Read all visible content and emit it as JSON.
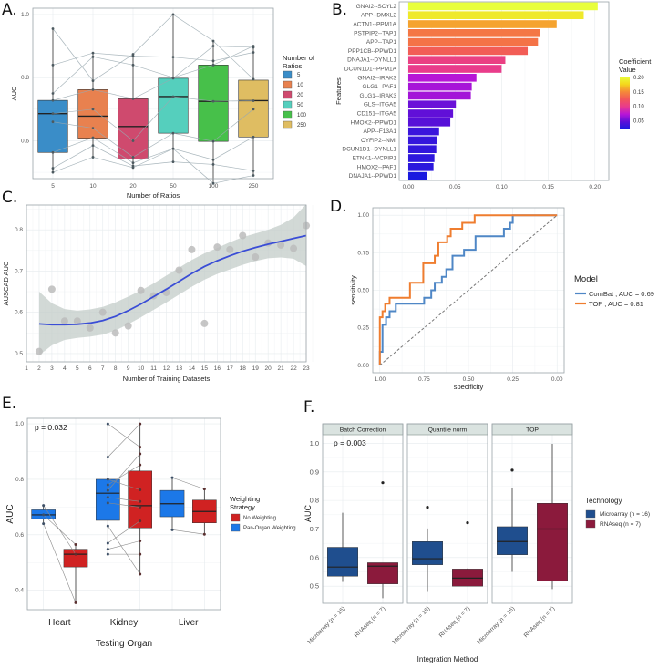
{
  "panels": {
    "A": {
      "letter": "A."
    },
    "B": {
      "letter": "B."
    },
    "C": {
      "letter": "C."
    },
    "D": {
      "letter": "D."
    },
    "E": {
      "letter": "E."
    },
    "F": {
      "letter": "F."
    }
  },
  "chart_data": [
    {
      "id": "A",
      "type": "box",
      "title": "",
      "xlabel": "Number of Ratios",
      "ylabel": "AUC",
      "ylim": [
        0.48,
        1.02
      ],
      "yticks": [
        0.6,
        0.8,
        1.0
      ],
      "categories": [
        "5",
        "10",
        "20",
        "50",
        "100",
        "250"
      ],
      "colors": [
        "#3a8dc8",
        "#e8814f",
        "#cf4a6e",
        "#55cfbd",
        "#47c04a",
        "#dfbd62"
      ],
      "boxes": [
        {
          "q1": 0.563,
          "median": 0.686,
          "q3": 0.728,
          "whisker_low": 0.5,
          "whisker_high": 0.955
        },
        {
          "q1": 0.608,
          "median": 0.678,
          "q3": 0.762,
          "whisker_low": 0.548,
          "whisker_high": 0.878
        },
        {
          "q1": 0.542,
          "median": 0.645,
          "q3": 0.733,
          "whisker_low": 0.52,
          "whisker_high": 0.874
        },
        {
          "q1": 0.624,
          "median": 0.74,
          "q3": 0.798,
          "whisker_low": 0.533,
          "whisker_high": 1.0
        },
        {
          "q1": 0.598,
          "median": 0.725,
          "q3": 0.84,
          "whisker_low": 0.465,
          "whisker_high": 0.916
        },
        {
          "q1": 0.612,
          "median": 0.727,
          "q3": 0.792,
          "whisker_low": 0.49,
          "whisker_high": 0.9
        }
      ],
      "paired_lines": [
        [
          0.955,
          0.79,
          0.874,
          1.0,
          0.916,
          0.795
        ],
        [
          0.84,
          0.878,
          0.868,
          0.865,
          0.853,
          0.88
        ],
        [
          0.75,
          0.866,
          0.84,
          0.8,
          0.84,
          0.9
        ],
        [
          0.728,
          0.762,
          0.733,
          0.798,
          0.9,
          0.896
        ],
        [
          0.686,
          0.7,
          0.6,
          0.74,
          0.725,
          0.727
        ],
        [
          0.66,
          0.64,
          0.548,
          0.624,
          0.598,
          0.7
        ],
        [
          0.563,
          0.61,
          0.53,
          0.575,
          0.54,
          0.612
        ],
        [
          0.513,
          0.585,
          0.52,
          0.533,
          0.525,
          0.505
        ],
        [
          0.5,
          0.548,
          0.515,
          0.575,
          0.465,
          0.49
        ]
      ],
      "legend": {
        "title": "Number of\nRatios",
        "entries": [
          "5",
          "10",
          "20",
          "50",
          "100",
          "250"
        ],
        "position": "right"
      },
      "grid": true
    },
    {
      "id": "B",
      "type": "bar",
      "orientation": "horizontal",
      "xlabel": "",
      "ylabel": "Features",
      "xlim": [
        0,
        0.21
      ],
      "xticks": [
        0.0,
        0.05,
        0.1,
        0.15,
        0.2
      ],
      "xtick_labels": [
        "0.00",
        "0.05",
        "0.10",
        "0.15",
        "0.20"
      ],
      "categories": [
        "GNAI2--SCYL2",
        "APP--DMXL2",
        "ACTN1--PPM1A",
        "PSTPIP2--TAP1",
        "APP--TAP1",
        "PPP1CB--PPWD1",
        "DNAJA1--DYNLL1",
        "DCUN1D1--PPM1A",
        "GNAI2--IRAK3",
        "GLG1--PAF1",
        "GLG1--IRAK3",
        "GLS--ITGA5",
        "CD151--ITGA5",
        "HMOX2--PPWD1",
        "APP--F13A1",
        "CYFIP2--NMI",
        "DCUN1D1--DYNLL1",
        "ETNK1--VCPIP1",
        "HMOX2--PAF1",
        "DNAJA1--PPWD1"
      ],
      "values": [
        0.203,
        0.188,
        0.159,
        0.141,
        0.139,
        0.128,
        0.104,
        0.1,
        0.073,
        0.068,
        0.067,
        0.051,
        0.048,
        0.045,
        0.033,
        0.031,
        0.03,
        0.028,
        0.027,
        0.02
      ],
      "colorbar": {
        "title": "Coefficient\nValue",
        "ticks": [
          "0.20",
          "0.15",
          "0.10",
          "0.05"
        ],
        "tick_values": [
          0.2,
          0.15,
          0.1,
          0.05
        ],
        "range": [
          0.02,
          0.203
        ],
        "stops": [
          "#1a1adf",
          "#5a10d8",
          "#b615d8",
          "#e83a8e",
          "#f2565a",
          "#f58a38",
          "#f4d81c",
          "#e8ff3c"
        ]
      },
      "grid": true
    },
    {
      "id": "C",
      "type": "scatter",
      "xlabel": "Number of Training Datasets",
      "ylabel": "AUSCAD AUC",
      "xlim": [
        1,
        24
      ],
      "ylim": [
        0.48,
        0.86
      ],
      "xticks": [
        1,
        2,
        3,
        4,
        5,
        6,
        7,
        8,
        9,
        10,
        11,
        12,
        13,
        14,
        15,
        16,
        17,
        18,
        19,
        20,
        21,
        22,
        23
      ],
      "yticks": [
        0.5,
        0.6,
        0.7,
        0.8
      ],
      "points": [
        [
          2,
          0.505
        ],
        [
          3,
          0.656
        ],
        [
          4,
          0.579
        ],
        [
          5,
          0.579
        ],
        [
          6,
          0.562
        ],
        [
          7,
          0.6
        ],
        [
          8,
          0.55
        ],
        [
          9,
          0.567
        ],
        [
          10,
          0.653
        ],
        [
          11,
          0.64
        ],
        [
          12,
          0.648
        ],
        [
          13,
          0.702
        ],
        [
          14,
          0.752
        ],
        [
          15,
          0.573
        ],
        [
          16,
          0.758
        ],
        [
          17,
          0.752
        ],
        [
          18,
          0.786
        ],
        [
          19,
          0.734
        ],
        [
          20,
          0.768
        ],
        [
          21,
          0.763
        ],
        [
          22,
          0.755
        ],
        [
          23,
          0.81
        ]
      ],
      "smooth": {
        "x": [
          2,
          3,
          4,
          5,
          6,
          7,
          8,
          9,
          10,
          11,
          12,
          13,
          14,
          15,
          16,
          17,
          18,
          19,
          20,
          21,
          22,
          23
        ],
        "y": [
          0.572,
          0.57,
          0.57,
          0.571,
          0.574,
          0.58,
          0.59,
          0.604,
          0.62,
          0.638,
          0.656,
          0.675,
          0.694,
          0.711,
          0.725,
          0.737,
          0.748,
          0.757,
          0.765,
          0.772,
          0.779,
          0.786
        ],
        "lo": [
          0.496,
          0.52,
          0.533,
          0.538,
          0.541,
          0.546,
          0.556,
          0.571,
          0.588,
          0.606,
          0.624,
          0.643,
          0.662,
          0.679,
          0.693,
          0.704,
          0.715,
          0.724,
          0.731,
          0.733,
          0.73,
          0.712
        ],
        "hi": [
          0.65,
          0.622,
          0.608,
          0.604,
          0.607,
          0.613,
          0.624,
          0.638,
          0.653,
          0.67,
          0.689,
          0.708,
          0.727,
          0.743,
          0.756,
          0.77,
          0.782,
          0.791,
          0.8,
          0.812,
          0.83,
          0.862
        ],
        "line_color": "#3a4dd6",
        "band_color": "#c3ccc8"
      },
      "point_color": "#bcbcbc",
      "grid": true
    },
    {
      "id": "D",
      "type": "line",
      "xlabel": "specificity",
      "ylabel": "sensitivity",
      "xlim": [
        1.0,
        0.0
      ],
      "ylim": [
        0,
        1
      ],
      "xticks": [
        1.0,
        0.75,
        0.5,
        0.25,
        0.0
      ],
      "xtick_labels": [
        "1.00",
        "0.75",
        "0.50",
        "0.25",
        "0.00"
      ],
      "yticks": [
        0,
        0.25,
        0.5,
        0.75,
        1.0
      ],
      "ytick_labels": [
        "0.00",
        "0.25",
        "0.50",
        "0.75",
        "1.00"
      ],
      "series": [
        {
          "name": "ComBat , AUC = 0.69",
          "color": "#4f87c6",
          "points": [
            [
              1.0,
              0.0
            ],
            [
              1.0,
              0.09
            ],
            [
              0.985,
              0.09
            ],
            [
              0.985,
              0.27
            ],
            [
              0.965,
              0.27
            ],
            [
              0.965,
              0.32
            ],
            [
              0.945,
              0.32
            ],
            [
              0.945,
              0.36
            ],
            [
              0.91,
              0.36
            ],
            [
              0.91,
              0.41
            ],
            [
              0.75,
              0.41
            ],
            [
              0.75,
              0.45
            ],
            [
              0.71,
              0.45
            ],
            [
              0.71,
              0.5
            ],
            [
              0.69,
              0.5
            ],
            [
              0.69,
              0.55
            ],
            [
              0.65,
              0.55
            ],
            [
              0.65,
              0.59
            ],
            [
              0.625,
              0.59
            ],
            [
              0.625,
              0.64
            ],
            [
              0.59,
              0.64
            ],
            [
              0.59,
              0.73
            ],
            [
              0.525,
              0.73
            ],
            [
              0.525,
              0.77
            ],
            [
              0.46,
              0.77
            ],
            [
              0.46,
              0.86
            ],
            [
              0.3,
              0.86
            ],
            [
              0.3,
              0.91
            ],
            [
              0.265,
              0.91
            ],
            [
              0.265,
              0.95
            ],
            [
              0.25,
              0.95
            ],
            [
              0.25,
              1.0
            ],
            [
              0.0,
              1.0
            ]
          ]
        },
        {
          "name": "TOP , AUC = 0.81",
          "color": "#ef7d2f",
          "points": [
            [
              1.0,
              0.0
            ],
            [
              1.0,
              0.32
            ],
            [
              0.985,
              0.32
            ],
            [
              0.985,
              0.36
            ],
            [
              0.97,
              0.36
            ],
            [
              0.97,
              0.41
            ],
            [
              0.945,
              0.41
            ],
            [
              0.945,
              0.45
            ],
            [
              0.83,
              0.45
            ],
            [
              0.83,
              0.55
            ],
            [
              0.755,
              0.55
            ],
            [
              0.755,
              0.68
            ],
            [
              0.69,
              0.68
            ],
            [
              0.69,
              0.73
            ],
            [
              0.67,
              0.73
            ],
            [
              0.67,
              0.82
            ],
            [
              0.62,
              0.82
            ],
            [
              0.62,
              0.86
            ],
            [
              0.6,
              0.86
            ],
            [
              0.6,
              0.91
            ],
            [
              0.535,
              0.91
            ],
            [
              0.535,
              0.95
            ],
            [
              0.465,
              0.95
            ],
            [
              0.465,
              1.0
            ],
            [
              0.0,
              1.0
            ]
          ]
        },
        {
          "name": "reference",
          "color": "#777777",
          "dashed": true,
          "points": [
            [
              1.0,
              0.0
            ],
            [
              0.0,
              1.0
            ]
          ]
        }
      ],
      "legend": {
        "title": "Model",
        "entries": [
          "ComBat , AUC = 0.69",
          "TOP , AUC = 0.81"
        ],
        "position": "right"
      },
      "grid": true
    },
    {
      "id": "E",
      "type": "box",
      "xlabel": "Testing Organ",
      "ylabel": "AUC",
      "ylim": [
        0.33,
        1.02
      ],
      "yticks": [
        0.4,
        0.6,
        0.8,
        1.0
      ],
      "categories": [
        "Heart",
        "Kidney",
        "Liver"
      ],
      "annotation": "p = 0.032",
      "series": [
        {
          "name": "Pan-Organ Weighting",
          "color": "#1c78e8",
          "boxes": [
            {
              "q1": 0.658,
              "median": 0.672,
              "q3": 0.69,
              "whisker_low": 0.64,
              "whisker_high": 0.706
            },
            {
              "q1": 0.652,
              "median": 0.75,
              "q3": 0.8,
              "whisker_low": 0.53,
              "whisker_high": 1.0
            },
            {
              "q1": 0.665,
              "median": 0.712,
              "q3": 0.76,
              "whisker_low": 0.618,
              "whisker_high": 0.806
            }
          ]
        },
        {
          "name": "No Weighting",
          "color": "#d02222",
          "boxes": [
            {
              "q1": 0.484,
              "median": 0.53,
              "q3": 0.548,
              "whisker_low": 0.355,
              "whisker_high": 0.565
            },
            {
              "q1": 0.625,
              "median": 0.705,
              "q3": 0.83,
              "whisker_low": 0.458,
              "whisker_high": 1.0
            },
            {
              "q1": 0.643,
              "median": 0.684,
              "q3": 0.725,
              "whisker_low": 0.602,
              "whisker_high": 0.765
            }
          ]
        }
      ],
      "paired_points": [
        {
          "organ": 0,
          "pairs": [
            [
              0.706,
              0.53
            ],
            [
              0.672,
              0.565
            ],
            [
              0.64,
              0.355
            ]
          ]
        },
        {
          "organ": 1,
          "pairs": [
            [
              1.0,
              0.916
            ],
            [
              0.88,
              1.0
            ],
            [
              0.8,
              0.762
            ],
            [
              0.78,
              0.852
            ],
            [
              0.76,
              0.892
            ],
            [
              0.735,
              0.72
            ],
            [
              0.715,
              0.7
            ],
            [
              0.632,
              0.458
            ],
            [
              0.57,
              0.65
            ],
            [
              0.548,
              0.578
            ],
            [
              0.53,
              0.53
            ]
          ]
        },
        {
          "organ": 2,
          "pairs": [
            [
              0.806,
              0.765
            ],
            [
              0.618,
              0.602
            ]
          ]
        }
      ],
      "legend": {
        "title": "Weighting\nStrategy",
        "entries": [
          "No Weighting",
          "Pan-Organ Weighting"
        ],
        "position": "right"
      },
      "grid": true
    },
    {
      "id": "F",
      "type": "box",
      "xlabel": "Integration Method",
      "ylabel": "AUC",
      "ylim": [
        0.44,
        1.03
      ],
      "yticks": [
        0.5,
        0.6,
        0.7,
        0.8,
        0.9,
        1.0
      ],
      "ytick_labels": [
        "0.5",
        "0.6",
        "0.7",
        "0.8",
        "0.9",
        "1.0"
      ],
      "annotation": "p = 0.003",
      "facets": [
        {
          "title": "Batch Correction",
          "boxes": [
            {
              "tech": "Microarray (n = 16)",
              "q1": 0.535,
              "median": 0.567,
              "q3": 0.636,
              "whisker_low": 0.515,
              "whisker_high": 0.757,
              "outliers": []
            },
            {
              "tech": "RNAseq (n = 7)",
              "q1": 0.508,
              "median": 0.57,
              "q3": 0.582,
              "whisker_low": 0.458,
              "whisker_high": 0.582,
              "outliers": [
                0.862
              ]
            }
          ]
        },
        {
          "title": "Quantile norm",
          "boxes": [
            {
              "tech": "Microarray (n = 16)",
              "q1": 0.575,
              "median": 0.596,
              "q3": 0.656,
              "whisker_low": 0.48,
              "whisker_high": 0.702,
              "outliers": [
                0.776
              ]
            },
            {
              "tech": "RNAseq (n = 7)",
              "q1": 0.5,
              "median": 0.528,
              "q3": 0.56,
              "whisker_low": 0.5,
              "whisker_high": 0.562,
              "outliers": [
                0.722
              ]
            }
          ]
        },
        {
          "title": "TOP",
          "boxes": [
            {
              "tech": "Microarray (n = 16)",
              "q1": 0.61,
              "median": 0.656,
              "q3": 0.708,
              "whisker_low": 0.55,
              "whisker_high": 0.842,
              "outliers": [
                0.906
              ]
            },
            {
              "tech": "RNAseq (n = 7)",
              "q1": 0.518,
              "median": 0.7,
              "q3": 0.79,
              "whisker_low": 0.49,
              "whisker_high": 0.998,
              "outliers": []
            }
          ]
        }
      ],
      "xtick_labels": [
        "Microarray (n = 16)",
        "RNAseq (n = 7)"
      ],
      "colors": {
        "Microarray (n = 16)": "#1f4e8e",
        "RNAseq (n = 7)": "#8b1a3c"
      },
      "legend": {
        "title": "Technology",
        "entries": [
          "Microarray (n = 16)",
          "RNAseq (n = 7)"
        ],
        "position": "right"
      },
      "grid": true
    }
  ]
}
